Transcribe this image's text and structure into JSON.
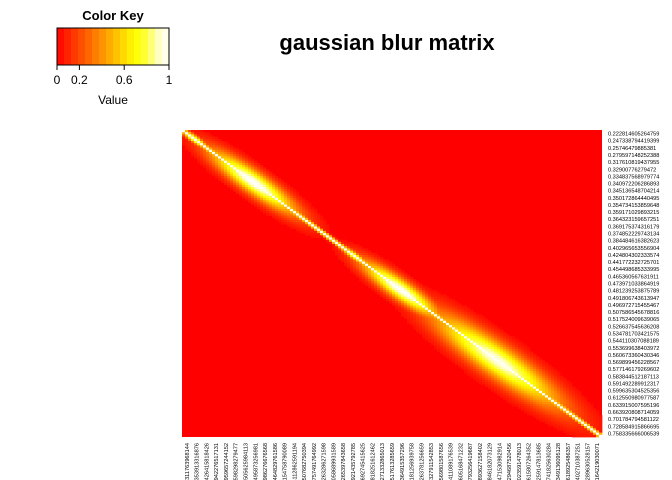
{
  "chart_data": {
    "type": "heatmap",
    "title": "gaussian blur matrix",
    "color_key": {
      "title": "Color Key",
      "xlabel": "Value",
      "ticks": [
        0,
        0.2,
        0.6,
        1
      ],
      "tick_labels": [
        "0",
        "0.2",
        "0.6",
        "1"
      ],
      "range": [
        0,
        1
      ],
      "colors": [
        "#FF0000",
        "#FF2400",
        "#FF4900",
        "#FF6D00",
        "#FF9200",
        "#FFB600",
        "#FFDB00",
        "#FFFF00",
        "#FFFF40",
        "#FFFFBF",
        "#FFFFFF"
      ]
    },
    "matrix_description": "gaussian blur of pairwise values; high (white/yellow) near the diagonal, red (0) elsewhere",
    "row_labels": [
      "0.222814605264759",
      "0.247338794419399",
      "0.25746479885381",
      "0.279597148252388",
      "0.317610819437955",
      "0.32900776279472",
      "0.334837568979774",
      "0.340972206286893",
      "0.345136548704214",
      "0.350172864440495",
      "0.354734153859648",
      "0.359171029893215",
      "0.364323159657251",
      "0.369175374316179",
      "0.374852229743134",
      "0.384484616382623",
      "0.402965653556904",
      "0.424804302333574",
      "0.441772232725701",
      "0.454498685333995",
      "0.465360567631911",
      "0.473971033864919",
      "0.481239253875789",
      "0.491806743613947",
      "0.496972715455467",
      "0.507586545678816",
      "0.517524009639065",
      "0.526637545636208",
      "0.534781703421575",
      "0.544110307088189",
      "0.553699638403972",
      "0.560673360430346",
      "0.569899456228567",
      "0.577146179269602",
      "0.583844512187113",
      "0.591492289912317",
      "0.599635304525356",
      "0.612550980977587",
      "0.633915007595196",
      "0.663920808714059",
      "0.701784794581122",
      "0.728584915866695",
      "0.758335666006539"
    ],
    "column_labels": [
      "0.215311763968144",
      "0.240353913316876",
      "0.254426415818426",
      "0.265942276517131",
      "0.302959657244152",
      "0.318598298279477",
      "0.331505625984113",
      "0.338495873256981",
      "0.342986276676568",
      "0.352464829761586",
      "0.357154758790089",
      "0.363112862591194",
      "0.371507682750394",
      "0.378757491764992",
      "0.386263286271598",
      "0.396058689931589",
      "0.405265397843658",
      "0.419921435792785",
      "0.436692745415625",
      "0.447818251612462",
      "0.458271332865013",
      "0.469517613285659",
      "0.477364915357296",
      "0.487181256939758",
      "0.497263781256659",
      "0.505327911542853",
      "0.514569801587656",
      "0.523411089176539",
      "0.532605168471232",
      "0.541793256419687",
      "0.550893627158402",
      "0.559846182073129",
      "0.568471530982914",
      "0.577294687520456",
      "0.586023591478013",
      "0.594615807264352",
      "0.603259147813685",
      "0.614741825630284",
      "0.628349136095128",
      "0.650618925486357",
      "0.686402710387251",
      "0.714289630528157",
      "0.735164219030071"
    ]
  }
}
